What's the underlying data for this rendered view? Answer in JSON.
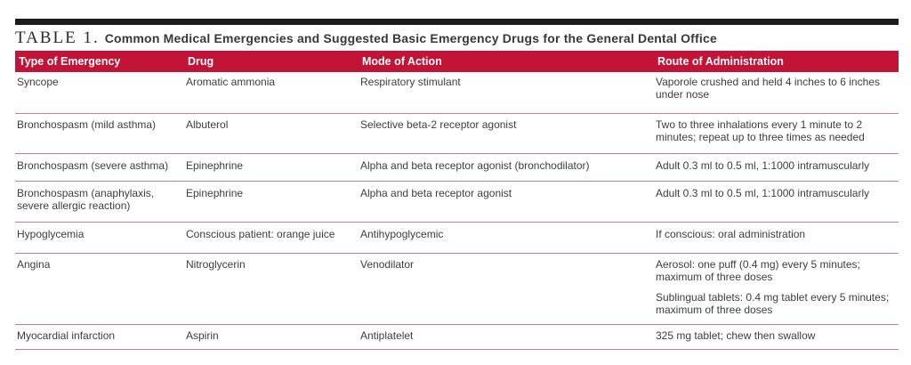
{
  "table": {
    "label": "TABLE 1.",
    "title": "Common Medical Emergencies and Suggested Basic Emergency Drugs for the General Dental Office",
    "columns": [
      "Type of Emergency",
      "Drug",
      "Mode of Action",
      "Route of Administration"
    ],
    "rows": [
      {
        "emergency": "Syncope",
        "drug": "Aromatic ammonia",
        "action": "Respiratory stimulant",
        "route": [
          "Vaporole crushed and held 4 inches to 6 inches under nose"
        ]
      },
      {
        "emergency": "Bronchospasm (mild asthma)",
        "drug": "Albuterol",
        "action": "Selective beta-2 receptor agonist",
        "route": [
          "Two to three inhalations every 1 minute to 2 minutes; repeat up to three times as needed"
        ]
      },
      {
        "emergency": "Bronchospasm (severe asthma)",
        "drug": "Epinephrine",
        "action": "Alpha and beta receptor agonist (bronchodilator)",
        "route": [
          "Adult 0.3 ml to 0.5 ml, 1:1000 intramuscularly"
        ]
      },
      {
        "emergency": "Bronchospasm (anaphylaxis, severe allergic reaction)",
        "drug": "Epinephrine",
        "action": "Alpha and beta receptor agonist",
        "route": [
          "Adult 0.3 ml to 0.5 ml, 1:1000 intramuscularly"
        ]
      },
      {
        "emergency": "Hypoglycemia",
        "drug": "Conscious patient: orange juice",
        "action": "Antihypoglycemic",
        "route": [
          "If conscious: oral administration"
        ]
      },
      {
        "emergency": "Angina",
        "drug": "Nitroglycerin",
        "action": "Venodilator",
        "route": [
          "Aerosol: one puff (0.4 mg) every 5 minutes; maximum of three doses",
          "Sublingual tablets: 0.4 mg tablet every 5 minutes; maximum of three doses"
        ]
      },
      {
        "emergency": "Myocardial infarction",
        "drug": "Aspirin",
        "action": "Antiplatelet",
        "route": [
          "325 mg tablet; chew then swallow"
        ]
      }
    ],
    "colors": {
      "header_bg": "#c31336",
      "separator": "#c4808f",
      "top_bar": "#1c1c1c"
    }
  }
}
